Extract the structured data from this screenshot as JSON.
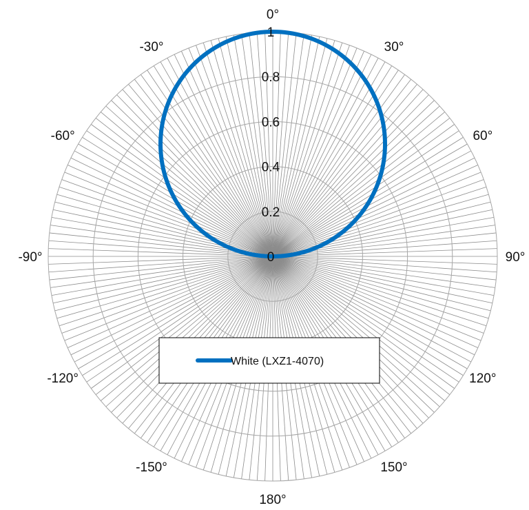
{
  "chart_data": {
    "type": "polar-line",
    "title": "",
    "angle_ticks": [
      {
        "angle": 0,
        "label": "0°"
      },
      {
        "angle": 30,
        "label": "30°"
      },
      {
        "angle": 60,
        "label": "60°"
      },
      {
        "angle": 90,
        "label": "90°"
      },
      {
        "angle": 120,
        "label": "120°"
      },
      {
        "angle": 150,
        "label": "150°"
      },
      {
        "angle": 180,
        "label": "180°"
      },
      {
        "angle": -150,
        "label": "-150°"
      },
      {
        "angle": -120,
        "label": "-120°"
      },
      {
        "angle": -90,
        "label": "-90°"
      },
      {
        "angle": -60,
        "label": "-60°"
      },
      {
        "angle": -30,
        "label": "-30°"
      }
    ],
    "radial_ticks": [
      {
        "value": 0,
        "label": "0"
      },
      {
        "value": 0.2,
        "label": "0.2"
      },
      {
        "value": 0.4,
        "label": "0.4"
      },
      {
        "value": 0.6,
        "label": "0.6"
      },
      {
        "value": 0.8,
        "label": "0.8"
      },
      {
        "value": 1,
        "label": "1"
      }
    ],
    "rlim": [
      0,
      1
    ],
    "radial_spoke_step_deg": 2,
    "grid": true,
    "legend": {
      "position": "lower-center"
    },
    "series": [
      {
        "name": "White (LXZ1-4070)",
        "color": "#0070C0",
        "model": "lambertian",
        "angles_deg": [
          -90,
          -80,
          -70,
          -60,
          -50,
          -40,
          -30,
          -20,
          -10,
          0,
          10,
          20,
          30,
          40,
          50,
          60,
          70,
          80,
          90
        ],
        "values": [
          0,
          0.174,
          0.342,
          0.5,
          0.643,
          0.766,
          0.866,
          0.94,
          0.985,
          1,
          0.985,
          0.94,
          0.866,
          0.766,
          0.643,
          0.5,
          0.342,
          0.174,
          0
        ]
      }
    ]
  }
}
